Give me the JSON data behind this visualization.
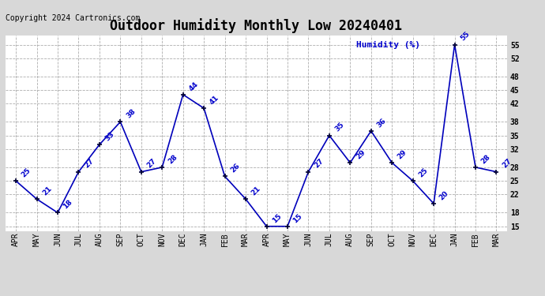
{
  "title": "Outdoor Humidity Monthly Low 20240401",
  "copyright": "Copyright 2024 Cartronics.com",
  "legend_label": "Humidity (%) ",
  "ylim": [
    14,
    57
  ],
  "yticks": [
    15,
    18,
    22,
    25,
    28,
    32,
    35,
    38,
    42,
    45,
    48,
    52,
    55
  ],
  "months": [
    "APR",
    "MAY",
    "JUN",
    "JUL",
    "AUG",
    "SEP",
    "OCT",
    "NOV",
    "DEC",
    "JAN",
    "FEB",
    "MAR",
    "APR",
    "MAY",
    "JUN",
    "JUL",
    "AUG",
    "SEP",
    "OCT",
    "NOV",
    "DEC",
    "JAN",
    "FEB",
    "MAR"
  ],
  "values": [
    25,
    21,
    18,
    27,
    33,
    38,
    27,
    28,
    44,
    41,
    26,
    21,
    15,
    15,
    27,
    35,
    29,
    36,
    29,
    25,
    20,
    55,
    28,
    27
  ],
  "line_color": "#0000bb",
  "marker": "+",
  "marker_size": 5,
  "marker_color": "#000033",
  "annotation_color": "#0000cc",
  "annotation_fontsize": 6.5,
  "title_fontsize": 12,
  "copyright_fontsize": 7,
  "bg_color": "#d8d8d8",
  "plot_bg_color": "#ffffff",
  "grid_color": "#999999",
  "legend_color": "#0000cc",
  "legend_fontsize": 8,
  "tick_fontsize": 7,
  "line_width": 1.2
}
